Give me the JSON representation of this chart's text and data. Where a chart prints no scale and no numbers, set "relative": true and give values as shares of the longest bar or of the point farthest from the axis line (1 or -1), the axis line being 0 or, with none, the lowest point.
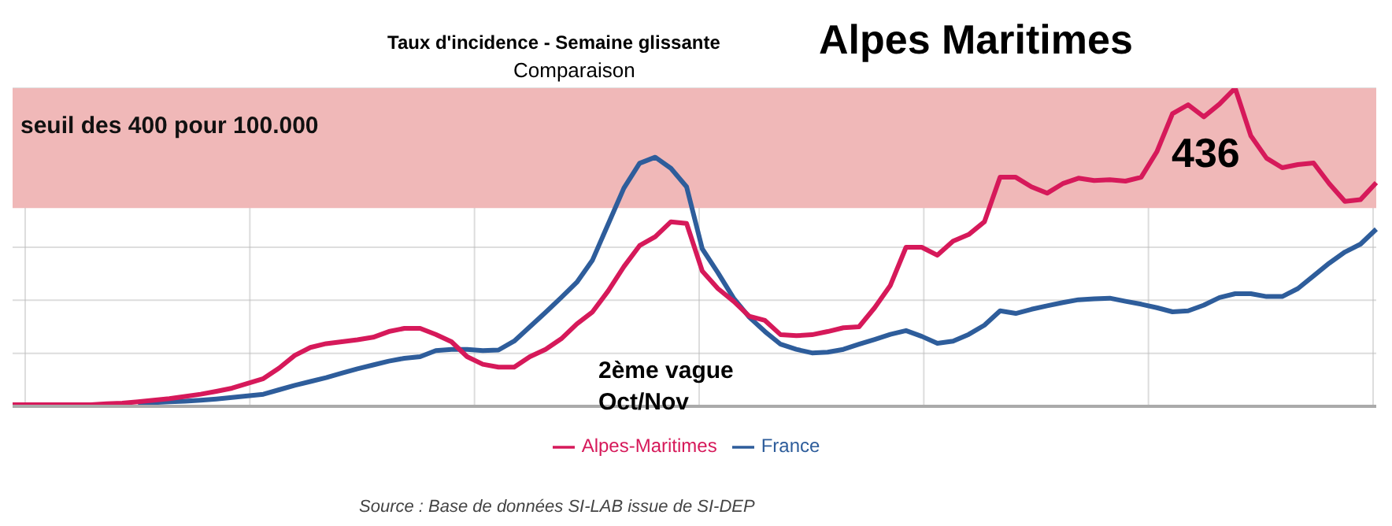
{
  "chart_data": {
    "type": "line",
    "title": "Taux d'incidence - Semaine glissante",
    "subtitle": "Comparaison",
    "relative": true,
    "grid": true,
    "legend": "bottom",
    "marker": "none",
    "line_style": "solid",
    "categories": [
      null,
      null,
      null,
      null,
      null,
      null,
      null,
      null,
      null,
      null,
      null,
      null,
      null,
      null,
      null,
      null,
      null,
      null,
      null,
      null,
      null,
      null,
      null,
      null,
      null,
      null,
      null,
      null,
      null,
      null,
      null,
      null,
      null,
      null,
      null,
      null,
      null,
      null,
      null,
      null,
      null,
      null,
      null,
      null,
      null,
      null,
      null,
      null,
      null,
      null,
      null,
      null,
      null,
      null,
      null,
      null,
      null,
      null,
      null,
      null,
      null,
      null,
      null,
      null,
      null,
      null,
      null,
      null,
      null,
      null,
      null,
      null,
      null,
      null,
      null,
      null,
      null,
      null,
      null,
      null,
      null,
      null,
      null,
      null,
      null,
      null,
      null,
      null
    ],
    "series": [
      {
        "name": "Alpes-Maritimes",
        "color": "#d6195a",
        "values": [
          0.005,
          0.005,
          0.005,
          0.005,
          0.005,
          0.005,
          0.008,
          0.01,
          0.014,
          0.019,
          0.024,
          0.031,
          0.038,
          0.047,
          0.057,
          0.072,
          0.087,
          0.12,
          0.16,
          0.185,
          0.197,
          0.203,
          0.209,
          0.217,
          0.235,
          0.245,
          0.245,
          0.226,
          0.203,
          0.156,
          0.132,
          0.123,
          0.123,
          0.156,
          0.179,
          0.212,
          0.259,
          0.297,
          0.363,
          0.439,
          0.505,
          0.533,
          0.58,
          0.575,
          0.425,
          0.37,
          0.33,
          0.283,
          0.27,
          0.225,
          0.222,
          0.225,
          0.235,
          0.247,
          0.25,
          0.31,
          0.38,
          0.5,
          0.5,
          0.475,
          0.519,
          0.54,
          0.58,
          0.72,
          0.72,
          0.69,
          0.67,
          0.7,
          0.717,
          0.71,
          0.712,
          0.708,
          0.72,
          0.8,
          0.92,
          0.948,
          0.91,
          0.95,
          1.0,
          0.85,
          0.78,
          0.75,
          0.76,
          0.765,
          0.7,
          0.644,
          0.65,
          0.703
        ]
      },
      {
        "name": "France",
        "color": "#2e5d9b",
        "values": [
          null,
          null,
          null,
          null,
          null,
          null,
          null,
          null,
          0.01,
          0.012,
          0.014,
          0.016,
          0.019,
          0.023,
          0.028,
          0.033,
          0.038,
          0.052,
          0.066,
          0.078,
          0.09,
          0.104,
          0.118,
          0.13,
          0.142,
          0.151,
          0.156,
          0.175,
          0.179,
          0.179,
          0.175,
          0.177,
          0.205,
          0.25,
          0.295,
          0.342,
          0.39,
          0.46,
          0.573,
          0.686,
          0.764,
          0.783,
          0.748,
          0.69,
          0.495,
          0.42,
          0.34,
          0.28,
          0.235,
          0.195,
          0.179,
          0.168,
          0.17,
          0.179,
          0.195,
          0.21,
          0.226,
          0.238,
          0.22,
          0.198,
          0.205,
          0.226,
          0.255,
          0.3,
          0.292,
          0.305,
          0.316,
          0.326,
          0.335,
          0.338,
          0.34,
          0.33,
          0.321,
          0.31,
          0.297,
          0.3,
          0.318,
          0.342,
          0.354,
          0.354,
          0.345,
          0.345,
          0.37,
          0.41,
          0.45,
          0.485,
          0.51,
          0.557
        ]
      }
    ],
    "bands": [
      {
        "axis": "y",
        "from": 0.623,
        "to": 1.0,
        "label": "seuil des 400 pour 100.000",
        "color": "#f0b8b8"
      }
    ],
    "annotations": [
      "Alpes Maritimes",
      "436",
      "2ème vague Oct/Nov",
      "Source : Base de données SI-LAB issue de SI-DEP"
    ]
  }
}
